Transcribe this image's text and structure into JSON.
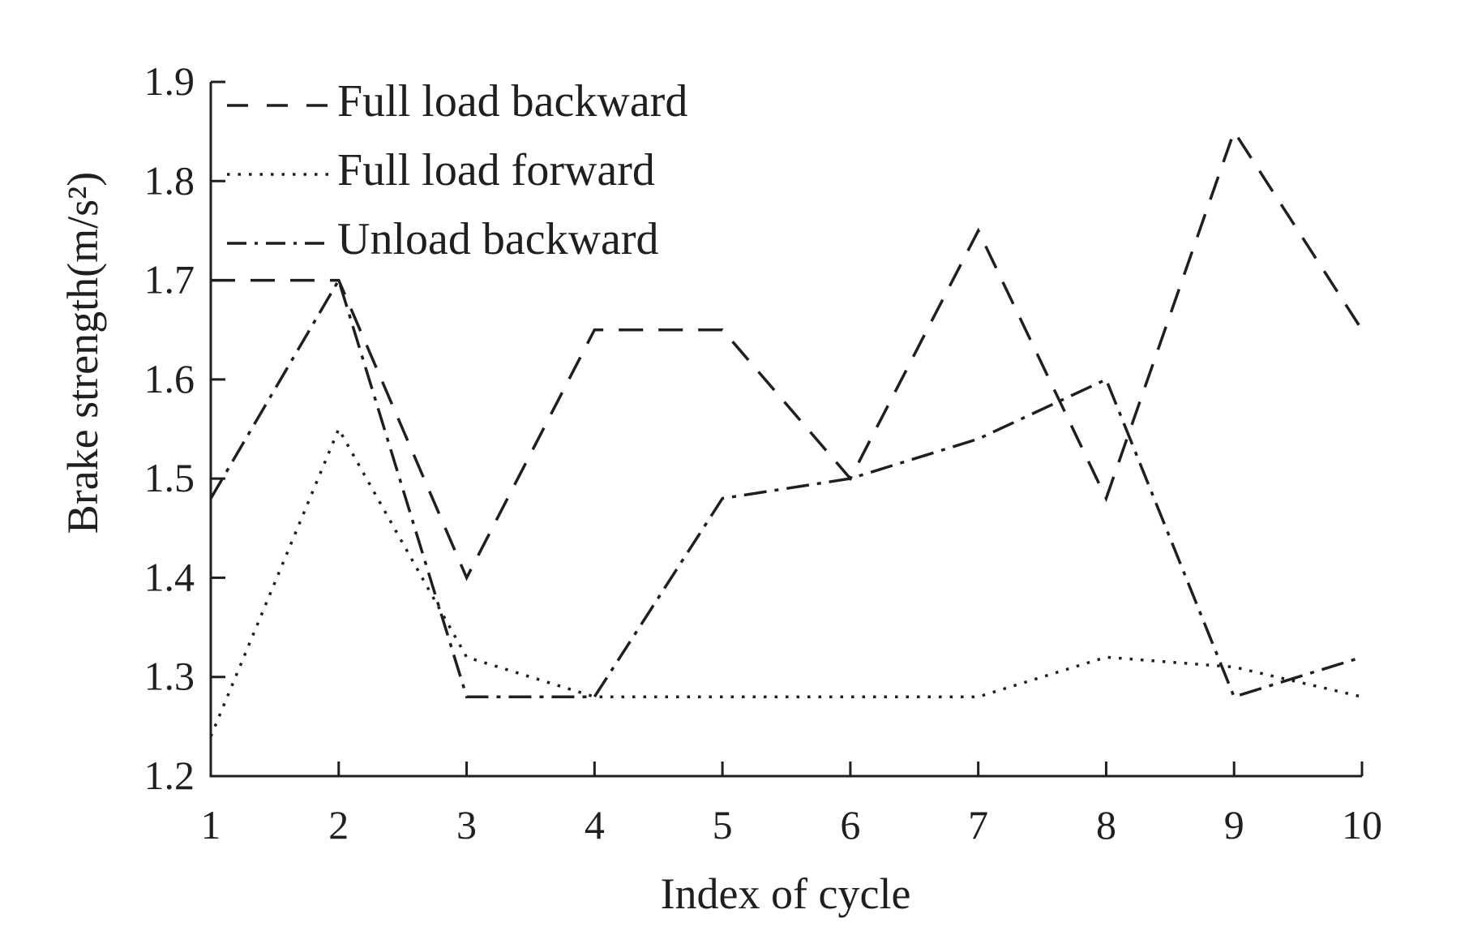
{
  "figure": {
    "background": "#ffffff",
    "ink_color": "#1f1f1f"
  },
  "chart_data": {
    "type": "line",
    "title": "",
    "xlabel": "Index of cycle",
    "ylabel": "Brake strength(m/s²)",
    "xlim": [
      1,
      10
    ],
    "ylim": [
      1.2,
      1.9
    ],
    "grid": false,
    "legend_position": "top-left-inside",
    "x": [
      1,
      2,
      3,
      4,
      5,
      6,
      7,
      8,
      9,
      10
    ],
    "x_ticks": [
      "1",
      "2",
      "3",
      "4",
      "5",
      "6",
      "7",
      "8",
      "9",
      "10"
    ],
    "y_ticks": [
      "1.2",
      "1.3",
      "1.4",
      "1.5",
      "1.6",
      "1.7",
      "1.8",
      "1.9"
    ],
    "series": [
      {
        "name": "Full load backward",
        "style": "dashed",
        "values": [
          1.7,
          1.7,
          1.4,
          1.65,
          1.65,
          1.5,
          1.75,
          1.48,
          1.85,
          1.65
        ]
      },
      {
        "name": "Full load forward",
        "style": "dotted",
        "values": [
          1.24,
          1.55,
          1.32,
          1.28,
          1.28,
          1.28,
          1.28,
          1.32,
          1.31,
          1.28
        ]
      },
      {
        "name": "Unload backward",
        "style": "dashdot",
        "values": [
          1.48,
          1.7,
          1.28,
          1.28,
          1.48,
          1.5,
          1.54,
          1.6,
          1.28,
          1.32
        ]
      }
    ]
  }
}
